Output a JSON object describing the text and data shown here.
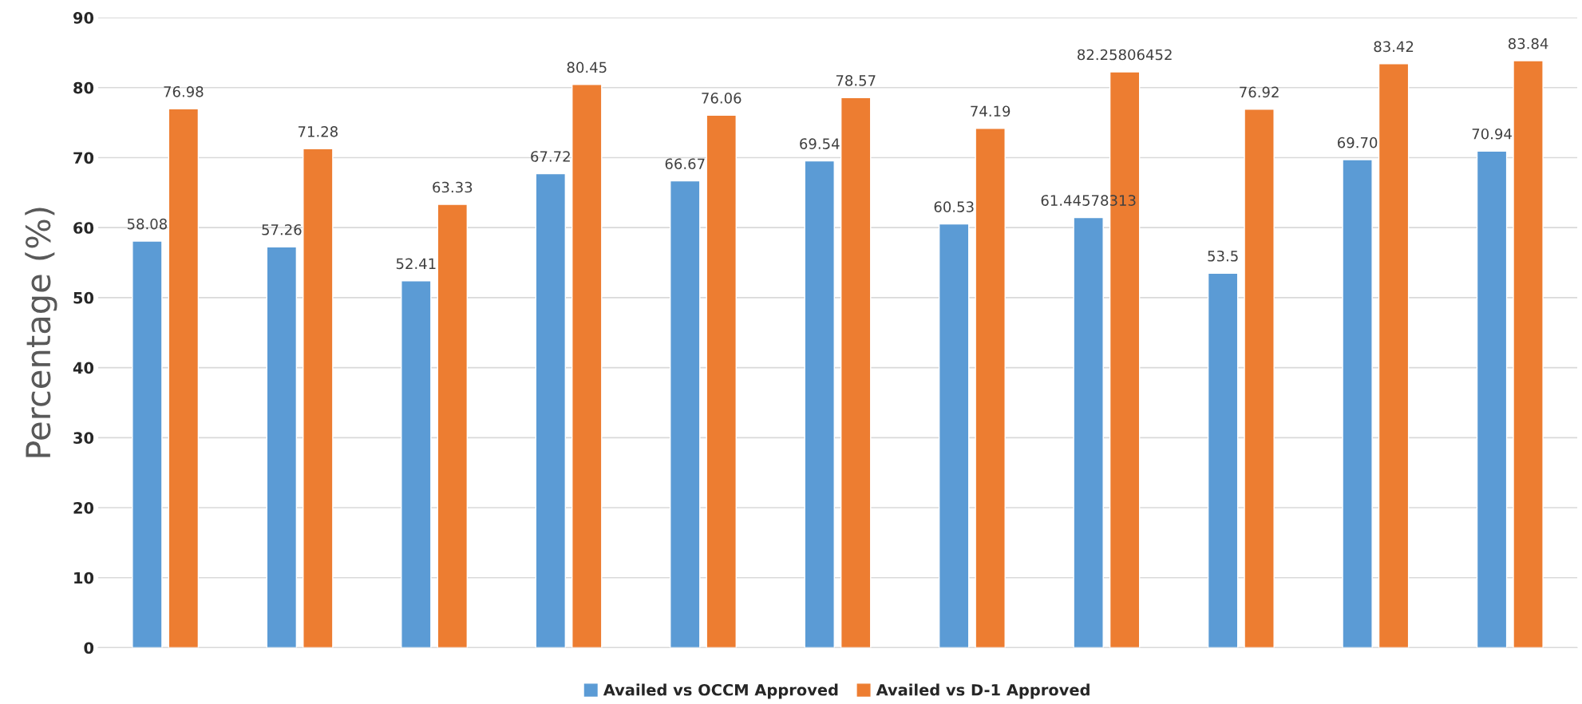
{
  "chart_data": {
    "type": "bar",
    "ylabel": "Percentage (%)",
    "categories": [
      null,
      null,
      null,
      null,
      null,
      null,
      null,
      null,
      null,
      null,
      null
    ],
    "series": [
      {
        "name": "Availed vs OCCM Approved",
        "color": "#5b9bd5",
        "values": [
          58.08,
          57.26,
          52.41,
          67.72,
          66.67,
          69.54,
          60.53,
          61.44578313,
          53.5,
          69.7,
          70.94
        ],
        "value_labels": [
          "58.08",
          "57.26",
          "52.41",
          "67.72",
          "66.67",
          "69.54",
          "60.53",
          "61.44578313",
          "53.5",
          "69.70",
          "70.94"
        ]
      },
      {
        "name": "Availed vs D-1 Approved",
        "color": "#ed7d31",
        "values": [
          76.98,
          71.28,
          63.33,
          80.45,
          76.06,
          78.57,
          74.19,
          82.25806452,
          76.92,
          83.42,
          83.84
        ],
        "value_labels": [
          "76.98",
          "71.28",
          "63.33",
          "80.45",
          "76.06",
          "78.57",
          "74.19",
          "82.25806452",
          "76.92",
          "83.42",
          "83.84"
        ]
      }
    ],
    "ylim": [
      0,
      90
    ],
    "yticks": [
      0,
      10,
      20,
      30,
      40,
      50,
      60,
      70,
      80,
      90
    ],
    "grid": "y",
    "legend": "bottom"
  }
}
